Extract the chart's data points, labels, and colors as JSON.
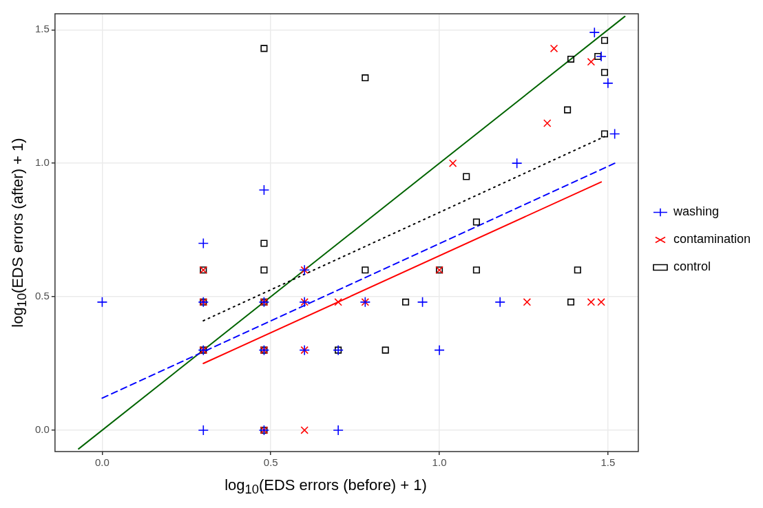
{
  "chart_data": {
    "type": "scatter",
    "xlabel": "log$_{10}$(EDS errors (before) + 1)",
    "ylabel": "log$_{10}$(EDS errors (after) + 1)",
    "xlim": [
      -0.14,
      1.59
    ],
    "ylim": [
      -0.08,
      1.56
    ],
    "xticks": [
      {
        "value": 0,
        "label": "0.0"
      },
      0.5,
      {
        "value": 1,
        "label": "1.0"
      },
      1.5
    ],
    "yticks": [
      {
        "value": 0,
        "label": "0.0"
      },
      0.5,
      {
        "value": 1,
        "label": "1.0"
      },
      1.5
    ],
    "grid": true,
    "legend": "right",
    "series": [
      {
        "name": "washing",
        "type": "scatter",
        "marker": "cross",
        "color": "#0000ff",
        "x": [
          0,
          0.3,
          0.3,
          0.3,
          0.3,
          0.48,
          0.48,
          0.48,
          0.48,
          0.6,
          0.6,
          0.6,
          0.7,
          0.7,
          0.78,
          0.95,
          1.0,
          1.18,
          1.23,
          1.46,
          1.48,
          1.5,
          1.52
        ],
        "values": [
          0.48,
          0.7,
          0.48,
          0.3,
          0,
          0.9,
          0.48,
          0.3,
          0,
          0.6,
          0.48,
          0.3,
          0.3,
          0,
          0.48,
          0.48,
          0.3,
          0.48,
          1.0,
          1.49,
          1.4,
          1.3,
          1.11
        ]
      },
      {
        "name": "contamination",
        "type": "scatter",
        "marker": "x",
        "color": "#ff0000",
        "x": [
          0.3,
          0.3,
          0.3,
          0.48,
          0.48,
          0.48,
          0.6,
          0.6,
          0.6,
          0.6,
          0.7,
          0.78,
          1.0,
          1.04,
          1.26,
          1.32,
          1.34,
          1.45,
          1.45,
          1.48
        ],
        "values": [
          0.6,
          0.48,
          0.3,
          0.48,
          0.3,
          0,
          0.6,
          0.48,
          0.3,
          0,
          0.48,
          0.48,
          0.6,
          1.0,
          0.48,
          1.15,
          1.43,
          1.38,
          0.48,
          0.48
        ]
      },
      {
        "name": "control",
        "type": "scatter",
        "marker": "square",
        "color": "#000000",
        "x": [
          0.3,
          0.3,
          0.3,
          0.48,
          0.48,
          0.48,
          0.48,
          0.48,
          0.48,
          0.7,
          0.78,
          0.78,
          0.84,
          0.9,
          1.0,
          1.08,
          1.11,
          1.11,
          1.38,
          1.39,
          1.39,
          1.41,
          1.47,
          1.49,
          1.49,
          1.49
        ],
        "values": [
          0.6,
          0.48,
          0.3,
          1.43,
          0.7,
          0.6,
          0.48,
          0.3,
          0,
          0.3,
          1.32,
          0.6,
          0.3,
          0.48,
          0.6,
          0.95,
          0.78,
          0.6,
          1.2,
          1.39,
          0.48,
          0.6,
          1.4,
          1.46,
          1.34,
          1.11
        ]
      },
      {
        "type": "line",
        "line_style": "dashed",
        "color": "#0000ff",
        "x": [
          0,
          1.52
        ],
        "values": [
          0.12,
          1.0
        ]
      },
      {
        "type": "line",
        "line_style": "solid",
        "color": "#ff0000",
        "x": [
          0.3,
          1.48
        ],
        "values": [
          0.25,
          0.93
        ]
      },
      {
        "type": "line",
        "line_style": "dotted",
        "color": "#000000",
        "x": [
          0.3,
          1.49
        ],
        "values": [
          0.41,
          1.1
        ]
      },
      {
        "type": "line",
        "line_style": "solid",
        "color": "#006400",
        "x": [
          -0.07,
          1.55
        ],
        "values": [
          -0.07,
          1.55
        ]
      }
    ]
  }
}
